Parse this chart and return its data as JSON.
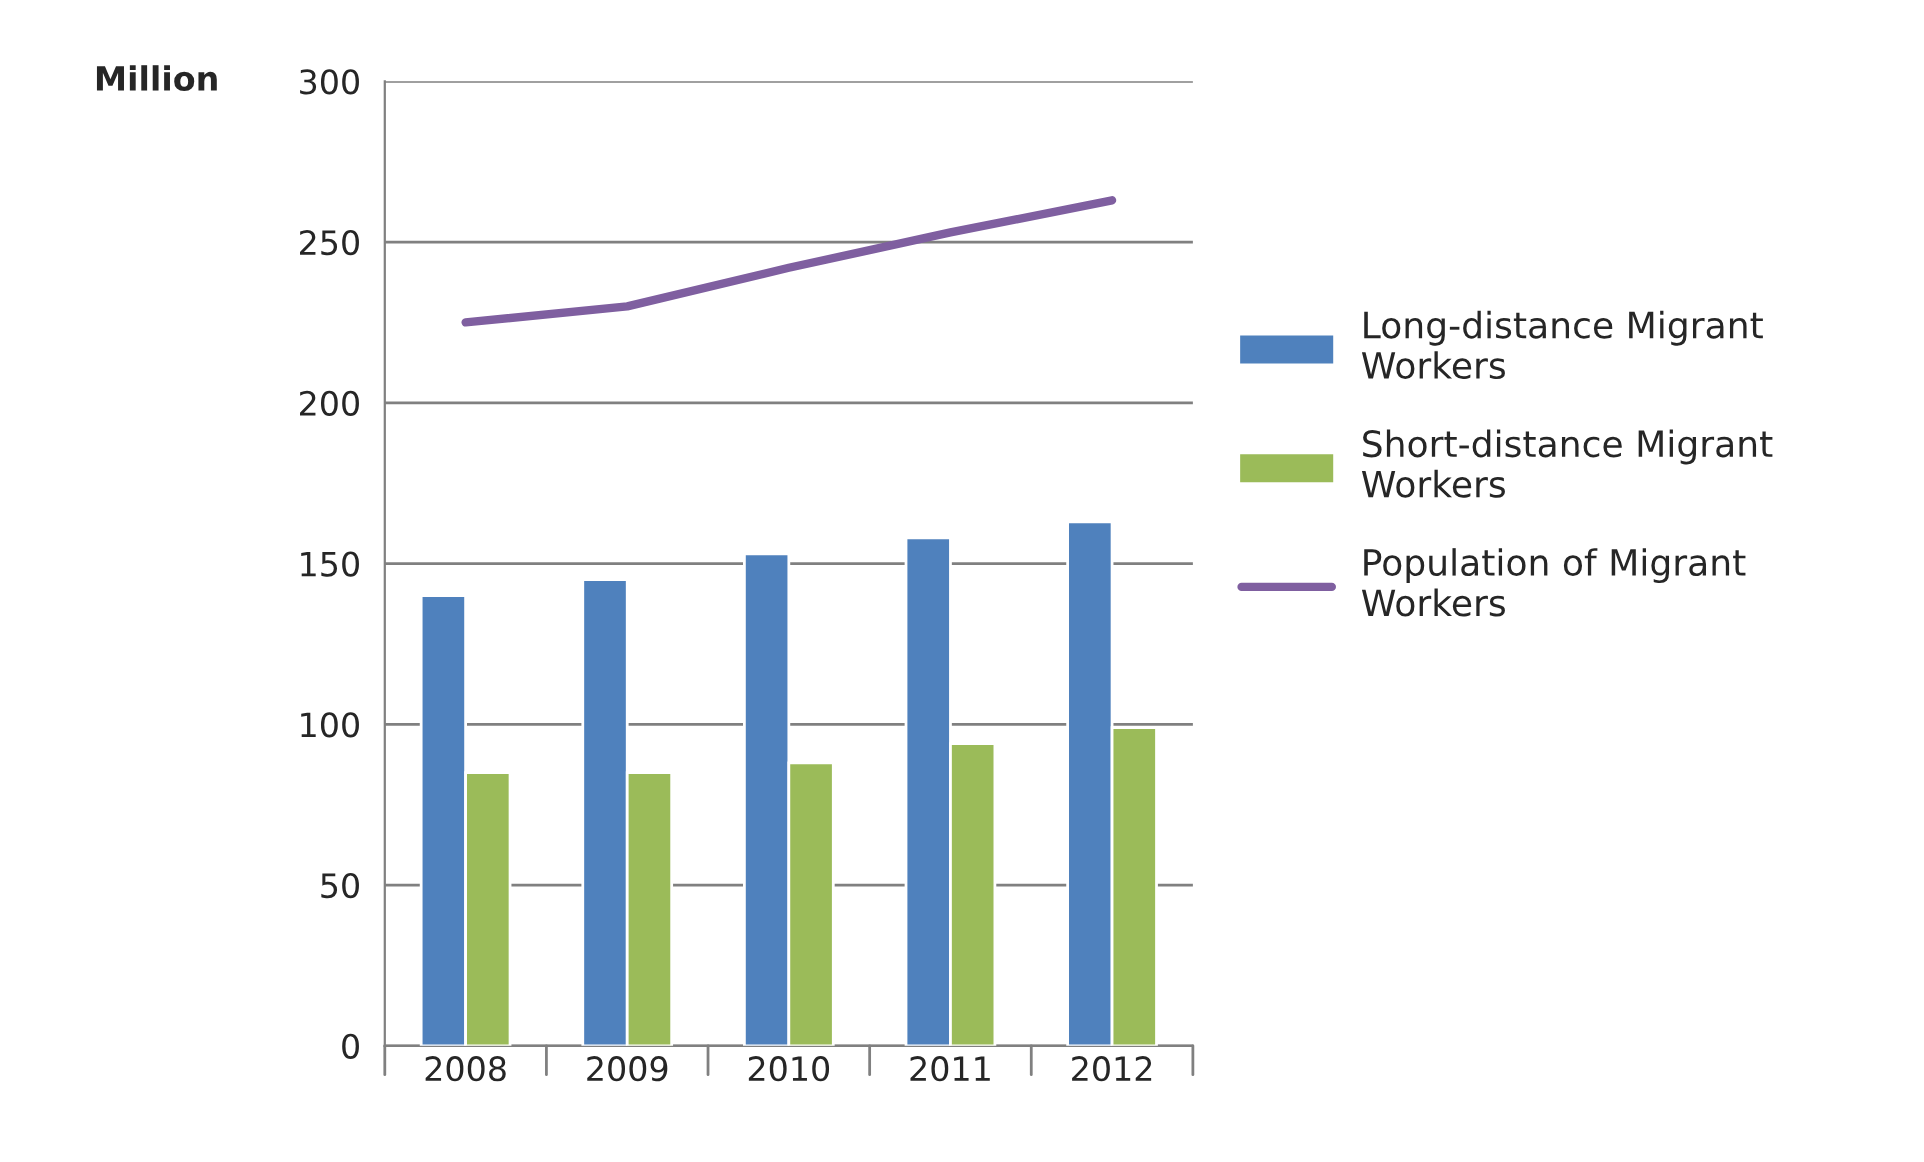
{
  "chart_data": {
    "type": "bar",
    "ylabel": "Million",
    "categories": [
      "2008",
      "2009",
      "2010",
      "2011",
      "2012"
    ],
    "series": [
      {
        "name": "Long-distance Migrant Workers",
        "color": "#4f81bd",
        "values": [
          140,
          145,
          153,
          158,
          163
        ]
      },
      {
        "name": "Short-distance Migrant Workers",
        "color": "#9bbb59",
        "values": [
          85,
          85,
          88,
          94,
          99
        ]
      },
      {
        "name": "Population of Migrant Workers",
        "type": "line",
        "color": "#7f5fa0",
        "values": [
          225,
          230,
          242,
          253,
          263
        ]
      }
    ],
    "ylim": [
      0,
      300
    ],
    "yticks": [
      0,
      50,
      100,
      150,
      200,
      250,
      300
    ],
    "grid": "y",
    "legend": "right"
  }
}
